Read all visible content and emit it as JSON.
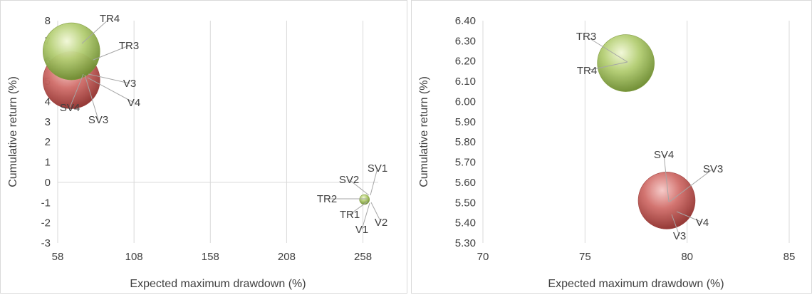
{
  "chart_data": [
    {
      "type": "bubble",
      "xlabel": "Expected maximum drawdown (%)",
      "ylabel": "Cumulative return (%)",
      "xlim": [
        58,
        268
      ],
      "ylim": [
        -3,
        8
      ],
      "xticks": [
        "58",
        "108",
        "158",
        "208",
        "258"
      ],
      "yticks": [
        "-3",
        "-2",
        "-1",
        "0",
        "1",
        "2",
        "3",
        "4",
        "5",
        "6",
        "7",
        "8"
      ],
      "grid": "vertical",
      "series": [
        {
          "color": "#c0504d",
          "points": [
            {
              "label": "SV4",
              "x": 67,
              "y": 5.3
            },
            {
              "label": "SV3",
              "x": 67,
              "y": 5.3
            },
            {
              "label": "V3",
              "x": 67,
              "y": 5.3
            },
            {
              "label": "V4",
              "x": 67,
              "y": 5.3
            },
            {
              "label": "SV1",
              "x": 259,
              "y": -0.85
            },
            {
              "label": "SV2",
              "x": 259,
              "y": -0.85
            },
            {
              "label": "V1",
              "x": 259,
              "y": -0.85
            },
            {
              "label": "V2",
              "x": 259,
              "y": -0.85
            }
          ]
        },
        {
          "color": "#9bbb59",
          "points": [
            {
              "label": "TR4",
              "x": 67,
              "y": 6.2
            },
            {
              "label": "TR3",
              "x": 67,
              "y": 6.2
            },
            {
              "label": "TR1",
              "x": 259,
              "y": -0.85
            },
            {
              "label": "TR2",
              "x": 259,
              "y": -0.85
            }
          ]
        }
      ]
    },
    {
      "type": "bubble",
      "xlabel": "Expected maximum drawdown (%)",
      "ylabel": "Cumulative return (%)",
      "xlim": [
        70,
        85
      ],
      "ylim": [
        5.3,
        6.4
      ],
      "xticks": [
        "70",
        "75",
        "80",
        "85"
      ],
      "yticks": [
        "5.30",
        "5.40",
        "5.50",
        "5.60",
        "5.70",
        "5.80",
        "5.90",
        "6.00",
        "6.10",
        "6.20",
        "6.30",
        "6.40"
      ],
      "grid": "vertical",
      "series": [
        {
          "color": "#c0504d",
          "points": [
            {
              "label": "SV4",
              "x": 79,
              "y": 5.51
            },
            {
              "label": "SV3",
              "x": 79,
              "y": 5.51
            },
            {
              "label": "V4",
              "x": 79,
              "y": 5.51
            },
            {
              "label": "V3",
              "x": 79,
              "y": 5.51
            }
          ]
        },
        {
          "color": "#9bbb59",
          "points": [
            {
              "label": "TR3",
              "x": 77,
              "y": 6.19
            },
            {
              "label": "TR4",
              "x": 77,
              "y": 6.19
            }
          ]
        }
      ]
    }
  ]
}
